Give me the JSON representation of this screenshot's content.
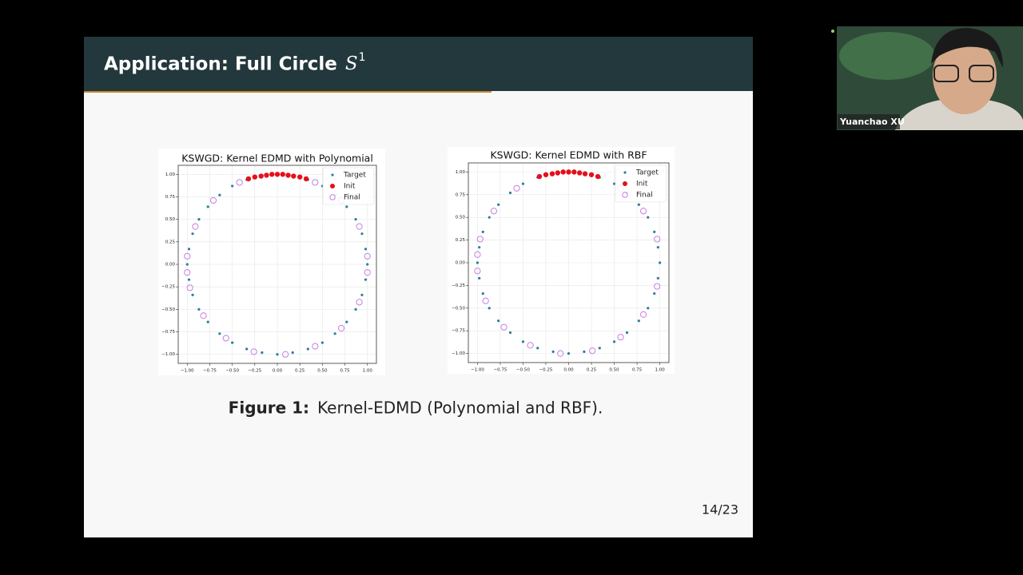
{
  "header": {
    "title": "Application: Full Circle",
    "title_math": "S",
    "title_superscript": "1"
  },
  "caption": {
    "label": "Figure 1:",
    "text": "Kernel-EDMD (Polynomial and RBF)."
  },
  "page_number": "14/23",
  "participant": {
    "name": "Yuanchao XU"
  },
  "chart_data": [
    {
      "type": "scatter",
      "title": "KSWGD: Kernel EDMD with Polynomial",
      "grid": true,
      "legend": "upper right",
      "xlim": [
        -1.1,
        1.1
      ],
      "ylim": [
        -1.1,
        1.1
      ],
      "xticks": [
        {
          "value": -1,
          "label": "−1.00"
        },
        {
          "value": -0.75,
          "label": "−0.75"
        },
        {
          "value": -0.5,
          "label": "−0.50"
        },
        {
          "value": -0.25,
          "label": "−0.25"
        },
        {
          "value": 0,
          "label": "0.00"
        },
        {
          "value": 0.25,
          "label": "0.25"
        },
        {
          "value": 0.5,
          "label": "0.50"
        },
        {
          "value": 0.75,
          "label": "0.75"
        },
        {
          "value": 1,
          "label": "1.00"
        }
      ],
      "yticks": [
        {
          "value": -1,
          "label": "−1.00"
        },
        {
          "value": -0.75,
          "label": "−0.75"
        },
        {
          "value": -0.5,
          "label": "−0.50"
        },
        {
          "value": -0.25,
          "label": "−0.25"
        },
        {
          "value": 0,
          "label": "0.00"
        },
        {
          "value": 0.25,
          "label": "0.25"
        },
        {
          "value": 0.5,
          "label": "0.50"
        },
        {
          "value": 0.75,
          "label": "0.75"
        },
        {
          "value": 1,
          "label": "1.00"
        }
      ],
      "series": [
        {
          "name": "Target",
          "color": "#2b7f9a",
          "marker": "dot",
          "x": [
            1,
            0.98,
            0.94,
            0.87,
            0.77,
            0.64,
            0.5,
            0.34,
            0.17,
            0,
            -0.17,
            -0.34,
            -0.5,
            -0.64,
            -0.77,
            -0.87,
            -0.94,
            -0.98,
            -1,
            -0.98,
            -0.94,
            -0.87,
            -0.77,
            -0.64,
            -0.5,
            -0.34,
            -0.17,
            0,
            0.17,
            0.34,
            0.5,
            0.64,
            0.77,
            0.87,
            0.94,
            0.98
          ],
          "values": [
            0,
            0.17,
            0.34,
            0.5,
            0.64,
            0.77,
            0.87,
            0.94,
            0.98,
            1,
            0.98,
            0.94,
            0.87,
            0.77,
            0.64,
            0.5,
            0.34,
            0.17,
            0,
            -0.17,
            -0.34,
            -0.5,
            -0.64,
            -0.77,
            -0.87,
            -0.94,
            -0.98,
            -1,
            -0.98,
            -0.94,
            -0.87,
            -0.77,
            -0.64,
            -0.5,
            -0.34,
            -0.17
          ]
        },
        {
          "name": "Init",
          "color": "#e5101c",
          "marker": "filled",
          "x": [
            -0.32,
            -0.25,
            -0.18,
            -0.12,
            -0.06,
            0,
            0.06,
            0.12,
            0.18,
            0.25,
            0.32
          ],
          "values": [
            0.95,
            0.97,
            0.98,
            0.99,
            1,
            1,
            1,
            0.99,
            0.98,
            0.97,
            0.95
          ]
        },
        {
          "name": "Final",
          "color": "#c77ee0",
          "marker": "hollow",
          "x": [
            1,
            0.91,
            0.71,
            0.42,
            -0.42,
            -0.71,
            -0.91,
            -1,
            -1,
            -0.97,
            -0.82,
            -0.57,
            -0.26,
            0.09,
            0.42,
            0.71,
            0.91,
            1
          ],
          "values": [
            0.09,
            0.42,
            0.71,
            0.91,
            0.91,
            0.71,
            0.42,
            0.09,
            -0.09,
            -0.26,
            -0.57,
            -0.82,
            -0.97,
            -1,
            -0.91,
            -0.71,
            -0.42,
            -0.09
          ]
        }
      ]
    },
    {
      "type": "scatter",
      "title": "KSWGD: Kernel EDMD with RBF",
      "grid": true,
      "legend": "upper right",
      "xlim": [
        -1.1,
        1.1
      ],
      "ylim": [
        -1.1,
        1.1
      ],
      "xticks": [
        {
          "value": -1,
          "label": "−1.00"
        },
        {
          "value": -0.75,
          "label": "−0.75"
        },
        {
          "value": -0.5,
          "label": "−0.50"
        },
        {
          "value": -0.25,
          "label": "−0.25"
        },
        {
          "value": 0,
          "label": "0.00"
        },
        {
          "value": 0.25,
          "label": "0.25"
        },
        {
          "value": 0.5,
          "label": "0.50"
        },
        {
          "value": 0.75,
          "label": "0.75"
        },
        {
          "value": 1,
          "label": "1.00"
        }
      ],
      "yticks": [
        {
          "value": -1,
          "label": "−1.00"
        },
        {
          "value": -0.75,
          "label": "−0.75"
        },
        {
          "value": -0.5,
          "label": "−0.50"
        },
        {
          "value": -0.25,
          "label": "−0.25"
        },
        {
          "value": 0,
          "label": "0.00"
        },
        {
          "value": 0.25,
          "label": "0.25"
        },
        {
          "value": 0.5,
          "label": "0.50"
        },
        {
          "value": 0.75,
          "label": "0.75"
        },
        {
          "value": 1,
          "label": "1.00"
        }
      ],
      "series": [
        {
          "name": "Target",
          "color": "#2b7f9a",
          "marker": "dot",
          "x": [
            1,
            0.98,
            0.94,
            0.87,
            0.77,
            0.64,
            0.5,
            0.34,
            0.17,
            0,
            -0.17,
            -0.34,
            -0.5,
            -0.64,
            -0.77,
            -0.87,
            -0.94,
            -0.98,
            -1,
            -0.98,
            -0.94,
            -0.87,
            -0.77,
            -0.64,
            -0.5,
            -0.34,
            -0.17,
            0,
            0.17,
            0.34,
            0.5,
            0.64,
            0.77,
            0.87,
            0.94,
            0.98
          ],
          "values": [
            0,
            0.17,
            0.34,
            0.5,
            0.64,
            0.77,
            0.87,
            0.94,
            0.98,
            1,
            0.98,
            0.94,
            0.87,
            0.77,
            0.64,
            0.5,
            0.34,
            0.17,
            0,
            -0.17,
            -0.34,
            -0.5,
            -0.64,
            -0.77,
            -0.87,
            -0.94,
            -0.98,
            -1,
            -0.98,
            -0.94,
            -0.87,
            -0.77,
            -0.64,
            -0.5,
            -0.34,
            -0.17
          ]
        },
        {
          "name": "Init",
          "color": "#e5101c",
          "marker": "filled",
          "x": [
            -0.32,
            -0.25,
            -0.18,
            -0.12,
            -0.06,
            0,
            0.06,
            0.12,
            0.18,
            0.25,
            0.32
          ],
          "values": [
            0.95,
            0.97,
            0.98,
            0.99,
            1,
            1,
            1,
            0.99,
            0.98,
            0.97,
            0.95
          ]
        },
        {
          "name": "Final",
          "color": "#c77ee0",
          "marker": "hollow",
          "x": [
            0.97,
            0.82,
            0.57,
            -0.57,
            -0.82,
            -0.97,
            -1,
            -1,
            -0.91,
            -0.71,
            -0.42,
            -0.09,
            0.26,
            0.57,
            0.82,
            0.97
          ],
          "values": [
            0.26,
            0.57,
            0.82,
            0.82,
            0.57,
            0.26,
            0.09,
            -0.09,
            -0.42,
            -0.71,
            -0.91,
            -1,
            -0.97,
            -0.82,
            -0.57,
            -0.26
          ]
        }
      ]
    }
  ]
}
